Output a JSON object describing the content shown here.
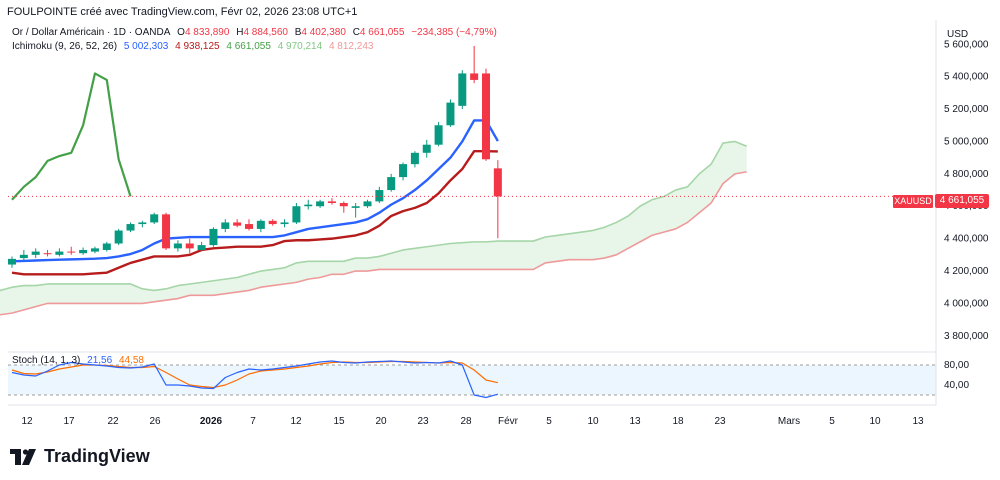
{
  "header": {
    "text": "FOULPOINTE créé avec TradingView.com, Févr 02, 2026 23:08 UTC+1"
  },
  "legend_main": {
    "symbol": "Or / Dollar Américain · 1D · OANDA",
    "o_label": "O",
    "o_value": "4 833,890",
    "h_label": "H",
    "h_value": "4 884,560",
    "b_label": "B",
    "b_value": "4 402,380",
    "c_label": "C",
    "c_value": "4 661,055",
    "change": "−234,385 (−4,79%)"
  },
  "legend_ichimoku": {
    "name": "Ichimoku (9, 26, 52, 26)",
    "v1": "5 002,303",
    "v2": "4 938,125",
    "v3": "4 661,055",
    "v4": "4 970,214",
    "v5": "4 812,243"
  },
  "legend_stoch": {
    "name": "Stoch (14, 1, 3)",
    "k": "21,56",
    "d": "44,58"
  },
  "price_axis": {
    "currency": "USD",
    "ticks": [
      "5 600,000",
      "5 400,000",
      "5 200,000",
      "5 000,000",
      "4 800,000",
      "4 600,000",
      "4 400,000",
      "4 200,000",
      "4 000,000",
      "3 800,000"
    ],
    "last_price": "4 661,055",
    "symbol_tag": "XAUUSD"
  },
  "stoch_axis": {
    "ticks": [
      "80,00",
      "40,00"
    ]
  },
  "time_axis": {
    "labels": [
      "12",
      "17",
      "22",
      "26",
      "2026",
      "7",
      "12",
      "15",
      "20",
      "23",
      "28",
      "Févr",
      "5",
      "10",
      "13",
      "18",
      "23",
      "Mars",
      "5",
      "10",
      "13"
    ]
  },
  "brand": {
    "name": "TradingView"
  },
  "colors": {
    "up": "#089981",
    "down": "#f23645",
    "tenkan": "#2962ff",
    "kijun": "#b71c1c",
    "chikou": "#43a047",
    "spanA": "#a5d6a7",
    "spanB": "#ef9a9a",
    "cloud": "#e8f5e9",
    "stochK": "#2962ff",
    "stochD": "#ff6d00"
  },
  "chart_data": {
    "type": "candlestick",
    "ylim": [
      3700,
      5750
    ],
    "candles": [
      {
        "o": 4240,
        "h": 4290,
        "l": 4220,
        "c": 4275
      },
      {
        "o": 4280,
        "h": 4330,
        "l": 4260,
        "c": 4300
      },
      {
        "o": 4300,
        "h": 4340,
        "l": 4280,
        "c": 4320
      },
      {
        "o": 4310,
        "h": 4330,
        "l": 4290,
        "c": 4305
      },
      {
        "o": 4300,
        "h": 4340,
        "l": 4290,
        "c": 4320
      },
      {
        "o": 4320,
        "h": 4350,
        "l": 4300,
        "c": 4315
      },
      {
        "o": 4310,
        "h": 4345,
        "l": 4300,
        "c": 4330
      },
      {
        "o": 4320,
        "h": 4350,
        "l": 4310,
        "c": 4340
      },
      {
        "o": 4330,
        "h": 4380,
        "l": 4320,
        "c": 4370
      },
      {
        "o": 4370,
        "h": 4460,
        "l": 4360,
        "c": 4450
      },
      {
        "o": 4450,
        "h": 4500,
        "l": 4440,
        "c": 4490
      },
      {
        "o": 4490,
        "h": 4510,
        "l": 4470,
        "c": 4500
      },
      {
        "o": 4500,
        "h": 4560,
        "l": 4490,
        "c": 4550
      },
      {
        "o": 4550,
        "h": 4560,
        "l": 4330,
        "c": 4340
      },
      {
        "o": 4340,
        "h": 4390,
        "l": 4320,
        "c": 4370
      },
      {
        "o": 4370,
        "h": 4400,
        "l": 4310,
        "c": 4340
      },
      {
        "o": 4330,
        "h": 4380,
        "l": 4320,
        "c": 4360
      },
      {
        "o": 4360,
        "h": 4470,
        "l": 4350,
        "c": 4460
      },
      {
        "o": 4460,
        "h": 4520,
        "l": 4440,
        "c": 4500
      },
      {
        "o": 4500,
        "h": 4520,
        "l": 4470,
        "c": 4480
      },
      {
        "o": 4490,
        "h": 4520,
        "l": 4450,
        "c": 4460
      },
      {
        "o": 4460,
        "h": 4520,
        "l": 4440,
        "c": 4510
      },
      {
        "o": 4510,
        "h": 4520,
        "l": 4480,
        "c": 4490
      },
      {
        "o": 4490,
        "h": 4520,
        "l": 4470,
        "c": 4500
      },
      {
        "o": 4500,
        "h": 4620,
        "l": 4490,
        "c": 4600
      },
      {
        "o": 4600,
        "h": 4640,
        "l": 4580,
        "c": 4610
      },
      {
        "o": 4600,
        "h": 4640,
        "l": 4590,
        "c": 4630
      },
      {
        "o": 4630,
        "h": 4650,
        "l": 4610,
        "c": 4620
      },
      {
        "o": 4620,
        "h": 4630,
        "l": 4560,
        "c": 4600
      },
      {
        "o": 4590,
        "h": 4620,
        "l": 4530,
        "c": 4600
      },
      {
        "o": 4600,
        "h": 4640,
        "l": 4590,
        "c": 4630
      },
      {
        "o": 4630,
        "h": 4720,
        "l": 4620,
        "c": 4700
      },
      {
        "o": 4700,
        "h": 4800,
        "l": 4690,
        "c": 4780
      },
      {
        "o": 4780,
        "h": 4870,
        "l": 4760,
        "c": 4860
      },
      {
        "o": 4860,
        "h": 4940,
        "l": 4840,
        "c": 4930
      },
      {
        "o": 4930,
        "h": 5010,
        "l": 4900,
        "c": 4980
      },
      {
        "o": 4980,
        "h": 5120,
        "l": 4970,
        "c": 5100
      },
      {
        "o": 5100,
        "h": 5260,
        "l": 5090,
        "c": 5240
      },
      {
        "o": 5220,
        "h": 5440,
        "l": 5200,
        "c": 5420
      },
      {
        "o": 5420,
        "h": 5590,
        "l": 5360,
        "c": 5380
      },
      {
        "o": 5420,
        "h": 5450,
        "l": 4880,
        "c": 4890
      },
      {
        "o": 4833.89,
        "h": 4884.56,
        "l": 4402.38,
        "c": 4661.055
      }
    ],
    "tenkan": [
      4260,
      4262,
      4265,
      4268,
      4270,
      4272,
      4274,
      4276,
      4280,
      4290,
      4305,
      4330,
      4370,
      4400,
      4405,
      4410,
      4410,
      4410,
      4410,
      4410,
      4410,
      4410,
      4410,
      4420,
      4440,
      4460,
      4470,
      4480,
      4490,
      4500,
      4520,
      4560,
      4610,
      4650,
      4700,
      4760,
      4830,
      4900,
      5000,
      5130,
      5130,
      5002.303
    ],
    "kijun": [
      4190,
      4180,
      4180,
      4180,
      4180,
      4180,
      4180,
      4185,
      4190,
      4220,
      4250,
      4270,
      4290,
      4290,
      4290,
      4300,
      4330,
      4340,
      4345,
      4350,
      4350,
      4350,
      4360,
      4385,
      4390,
      4390,
      4395,
      4400,
      4410,
      4420,
      4440,
      4480,
      4540,
      4570,
      4590,
      4620,
      4680,
      4760,
      4830,
      4940,
      4940,
      4938.125
    ],
    "chikou": [
      4640,
      4720,
      4780,
      4880,
      4910,
      4930,
      5100,
      5420,
      5380,
      4890,
      4661.055
    ],
    "spanA": [
      4050,
      4040,
      4060,
      4080,
      4100,
      4110,
      4110,
      4120,
      4120,
      4120,
      4120,
      4120,
      4120,
      4120,
      4120,
      4090,
      4080,
      4090,
      4110,
      4120,
      4130,
      4140,
      4150,
      4160,
      4180,
      4200,
      4210,
      4220,
      4250,
      4260,
      4260,
      4260,
      4260,
      4280,
      4280,
      4290,
      4310,
      4330,
      4340,
      4350,
      4360,
      4370,
      4375,
      4380,
      4380,
      4385,
      4385,
      4385,
      4385,
      4410,
      4420,
      4430,
      4440,
      4450,
      4470,
      4500,
      4540,
      4600,
      4640,
      4660,
      4700,
      4720,
      4800,
      4860,
      4990,
      5000,
      4970.214
    ],
    "spanB": [
      3880,
      3890,
      3910,
      3930,
      3940,
      3960,
      3980,
      4000,
      4000,
      4000,
      4000,
      4000,
      4000,
      4000,
      4000,
      4000,
      4010,
      4020,
      4030,
      4050,
      4050,
      4050,
      4060,
      4070,
      4080,
      4100,
      4110,
      4120,
      4130,
      4150,
      4160,
      4180,
      4180,
      4200,
      4200,
      4210,
      4210,
      4210,
      4210,
      4210,
      4210,
      4210,
      4210,
      4210,
      4210,
      4210,
      4210,
      4210,
      4210,
      4250,
      4260,
      4270,
      4270,
      4270,
      4280,
      4300,
      4340,
      4380,
      4420,
      4440,
      4460,
      4500,
      4560,
      4620,
      4740,
      4800,
      4812.243
    ],
    "stoch_k": [
      65,
      60,
      58,
      68,
      80,
      85,
      82,
      80,
      78,
      75,
      74,
      76,
      82,
      40,
      40,
      38,
      34,
      33,
      55,
      65,
      72,
      70,
      72,
      75,
      78,
      82,
      86,
      88,
      85,
      84,
      86,
      87,
      88,
      86,
      84,
      85,
      84,
      88,
      80,
      20,
      15,
      21.56
    ],
    "stoch_d": [
      70,
      63,
      62,
      66,
      72,
      76,
      80,
      80,
      79,
      77,
      75,
      75,
      77,
      65,
      52,
      40,
      37,
      35,
      40,
      50,
      62,
      68,
      70,
      72,
      75,
      78,
      82,
      85,
      86,
      85,
      85,
      86,
      87,
      87,
      86,
      85,
      84,
      85,
      84,
      70,
      50,
      44.58
    ]
  }
}
